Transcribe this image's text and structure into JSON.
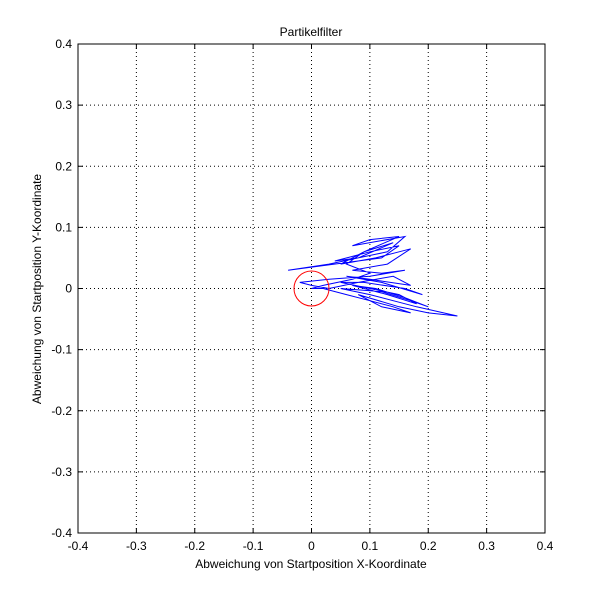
{
  "chart_data": {
    "type": "line",
    "title": "Partikelfilter",
    "xlabel": "Abweichung von Startposition X-Koordinate",
    "ylabel": "Abweichung von Startposition Y-Koordinate",
    "xlim": [
      -0.4,
      0.4
    ],
    "ylim": [
      -0.4,
      0.4
    ],
    "xticks": [
      -0.4,
      -0.3,
      -0.2,
      -0.1,
      0,
      0.1,
      0.2,
      0.3,
      0.4
    ],
    "yticks": [
      -0.4,
      -0.3,
      -0.2,
      -0.1,
      0,
      0.1,
      0.2,
      0.3,
      0.4
    ],
    "xtick_labels": [
      "-0.4",
      "-0.3",
      "-0.2",
      "-0.1",
      "0",
      "0.1",
      "0.2",
      "0.3",
      "0.4"
    ],
    "ytick_labels": [
      "-0.4",
      "-0.3",
      "-0.2",
      "-0.1",
      "0",
      "0.1",
      "0.2",
      "0.3",
      "0.4"
    ],
    "grid": true,
    "series": [
      {
        "color": "#0000ff",
        "x": [
          0.0,
          0.02,
          0.06,
          0.1,
          0.14,
          0.17,
          0.12,
          0.08,
          0.15,
          0.2,
          0.25,
          0.18,
          0.1,
          0.05,
          0.12,
          0.17,
          0.2,
          0.16,
          0.11,
          0.07,
          0.13,
          0.18,
          0.15,
          0.1,
          0.05,
          0.09,
          0.16,
          0.19,
          0.12,
          0.06,
          0.1,
          0.17,
          0.14,
          0.08,
          0.03,
          0.0,
          -0.02,
          0.03,
          0.1,
          0.16,
          0.12,
          0.07,
          0.13,
          0.17,
          0.15,
          0.11,
          0.05,
          0.09,
          0.15,
          0.1,
          0.07,
          0.16,
          0.13,
          0.08,
          0.04,
          0.1,
          0.15,
          0.12,
          -0.04,
          0.03,
          0.08,
          0.14,
          0.09,
          0.06,
          0.1,
          0.07,
          0.02,
          0.0
        ],
        "y": [
          0.0,
          0.0,
          -0.01,
          -0.02,
          -0.03,
          -0.04,
          -0.03,
          -0.01,
          -0.03,
          -0.04,
          -0.045,
          -0.03,
          -0.01,
          0.0,
          -0.005,
          -0.02,
          -0.03,
          -0.015,
          0.0,
          0.005,
          -0.01,
          -0.025,
          -0.01,
          0.0,
          0.01,
          0.01,
          0.0,
          -0.01,
          0.01,
          0.02,
          0.015,
          0.005,
          0.02,
          0.01,
          0.0,
          0.005,
          0.01,
          0.015,
          0.02,
          0.03,
          0.025,
          0.03,
          0.04,
          0.065,
          0.06,
          0.05,
          0.04,
          0.06,
          0.085,
          0.08,
          0.07,
          0.085,
          0.06,
          0.05,
          0.045,
          0.06,
          0.07,
          0.05,
          0.03,
          0.04,
          0.05,
          0.075,
          0.06,
          0.04,
          0.025,
          0.015,
          0.005,
          0.0
        ]
      },
      {
        "color": "#ff0000",
        "shape": "circle",
        "center": [
          0.0,
          0.0
        ],
        "radius": 0.03
      }
    ]
  }
}
